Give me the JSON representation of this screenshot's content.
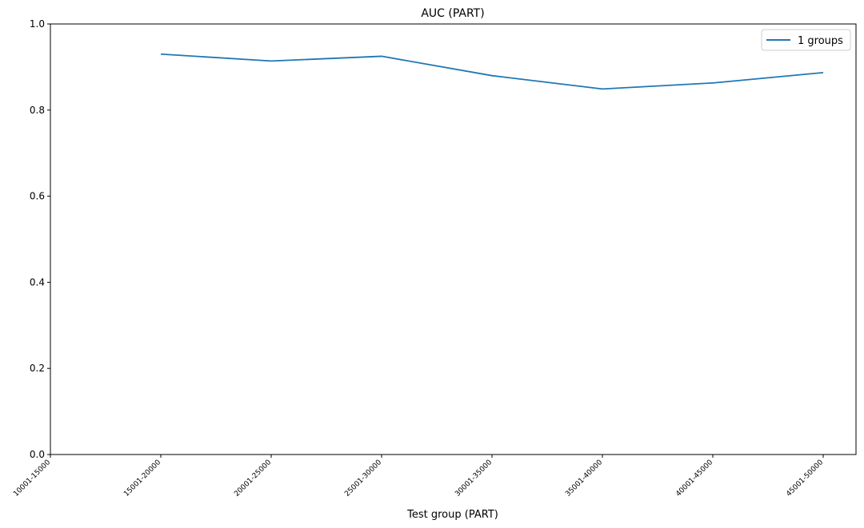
{
  "chart_data": {
    "type": "line",
    "title": "AUC (PART)",
    "xlabel": "Test group (PART)",
    "ylabel": "",
    "categories": [
      "10001-15000",
      "15001-20000",
      "20001-25000",
      "25001-30000",
      "30001-35000",
      "35001-40000",
      "40001-45000",
      "45001-50000"
    ],
    "series": [
      {
        "name": "1 groups",
        "color": "#1f77b4",
        "values": [
          null,
          0.93,
          0.914,
          0.925,
          0.88,
          0.849,
          0.863,
          0.887
        ]
      }
    ],
    "yticks": [
      "0.0",
      "0.2",
      "0.4",
      "0.6",
      "0.8",
      "1.0"
    ],
    "ytick_values": [
      0.0,
      0.2,
      0.4,
      0.6,
      0.8,
      1.0
    ],
    "ylim": [
      0,
      1.0
    ],
    "grid": false,
    "legend_position": "top-right"
  }
}
